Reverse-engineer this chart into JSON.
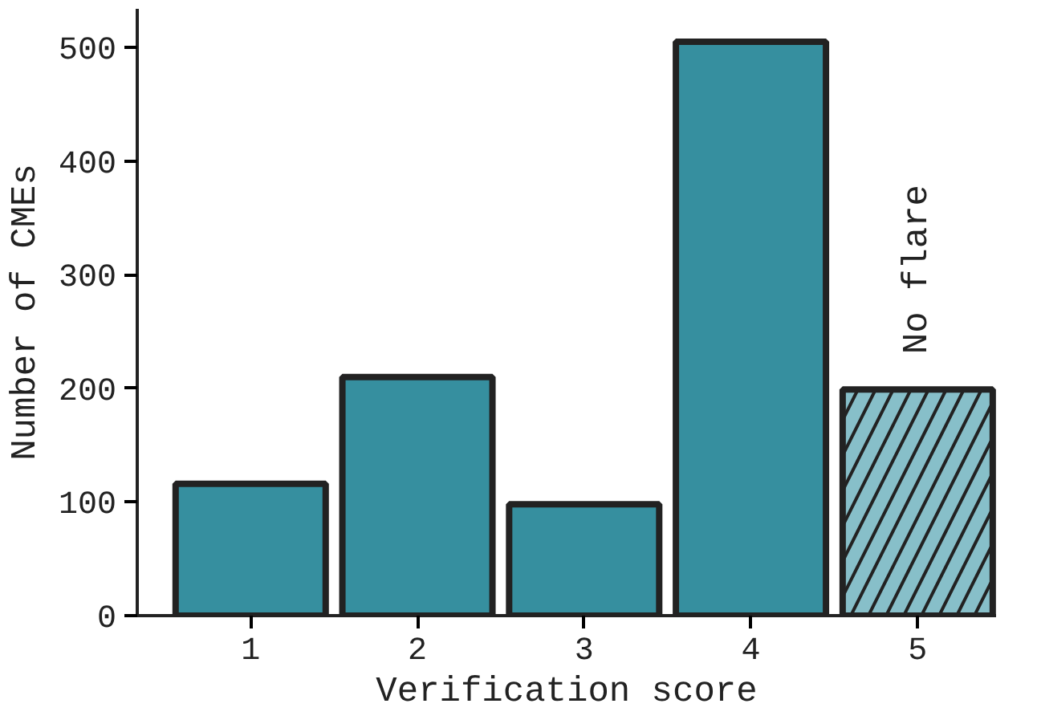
{
  "chart_data": {
    "type": "bar",
    "xlabel": "Verification score",
    "ylabel": "Number of CMEs",
    "categories": [
      "1",
      "2",
      "3",
      "4",
      "5"
    ],
    "values": [
      116,
      210,
      98,
      505,
      199
    ],
    "colors": [
      "#368f9f",
      "#368f9f",
      "#368f9f",
      "#368f9f",
      "#87bfc9"
    ],
    "ylim": [
      0,
      534
    ],
    "yticks": [
      0,
      100,
      200,
      300,
      400,
      500
    ],
    "annotations": [
      "No flare"
    ],
    "grid": false
  }
}
